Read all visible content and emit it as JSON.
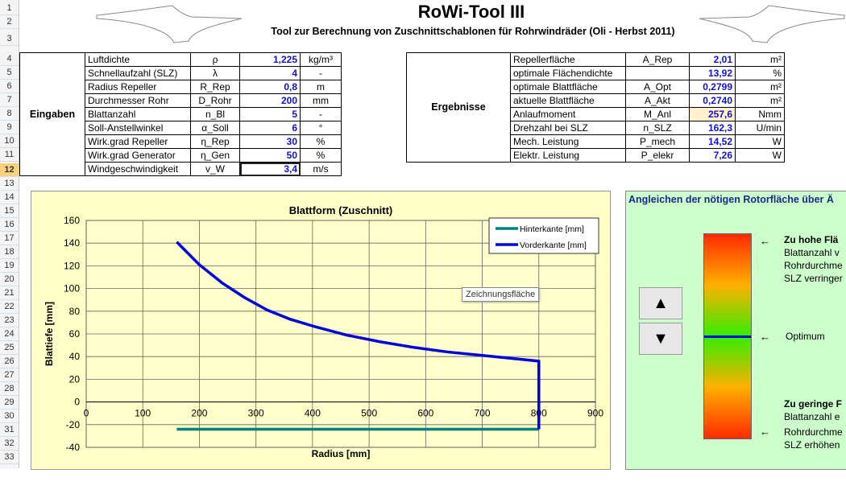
{
  "row_numbers": [
    "1",
    "2",
    "3",
    "4",
    "5",
    "6",
    "7",
    "8",
    "9",
    "10",
    "11",
    "12",
    "13",
    "14",
    "15",
    "16",
    "17",
    "18",
    "19",
    "20",
    "21",
    "22",
    "23",
    "24",
    "25",
    "26",
    "27",
    "28",
    "29",
    "30",
    "31",
    "32",
    "33"
  ],
  "selected_row": "12",
  "header": {
    "title": "RoWi-Tool III",
    "subtitle": "Tool zur Berechnung von Zuschnittschablonen für Rohrwindräder (Oli - Herbst 2011)"
  },
  "inputs": {
    "label": "Eingaben",
    "rows": [
      {
        "name": "Luftdichte",
        "sym": "ρ",
        "val": "1,225",
        "unit": "kg/m³"
      },
      {
        "name": "Schnellaufzahl (SLZ)",
        "sym": "λ",
        "val": "4",
        "unit": "-"
      },
      {
        "name": "Radius Repeller",
        "sym": "R_Rep",
        "val": "0,8",
        "unit": "m"
      },
      {
        "name": "Durchmesser Rohr",
        "sym": "D_Rohr",
        "val": "200",
        "unit": "mm"
      },
      {
        "name": "Blattanzahl",
        "sym": "n_Bl",
        "val": "5",
        "unit": "-"
      },
      {
        "name": "Soll-Anstellwinkel",
        "sym": "α_Soll",
        "val": "6",
        "unit": "°"
      },
      {
        "name": "Wirk.grad Repeller",
        "sym": "η_Rep",
        "val": "30",
        "unit": "%"
      },
      {
        "name": "Wirk.grad Generator",
        "sym": "η_Gen",
        "val": "50",
        "unit": "%"
      },
      {
        "name": "Windgeschwindigkeit",
        "sym": "v_W",
        "val": "3,4",
        "unit": "m/s"
      }
    ]
  },
  "results": {
    "label": "Ergebnisse",
    "rows": [
      {
        "name": "Repellerfläche",
        "sym": "A_Rep",
        "val": "2,01",
        "unit": "m²"
      },
      {
        "name": "optimale Flächendichte",
        "sym": "",
        "val": "13,92",
        "unit": "%"
      },
      {
        "name": "optimale Blattfläche",
        "sym": "A_Opt",
        "val": "0,2799",
        "unit": "m²"
      },
      {
        "name": "aktuelle Blattfläche",
        "sym": "A_Akt",
        "val": "0,2740",
        "unit": "m²"
      },
      {
        "name": "Anlaufmoment",
        "sym": "M_Anl",
        "val": "257,6",
        "unit": "Nmm"
      },
      {
        "name": "Drehzahl bei SLZ",
        "sym": "n_SLZ",
        "val": "162,3",
        "unit": "U/min"
      },
      {
        "name": "Mech. Leistung",
        "sym": "P_mech",
        "val": "14,52",
        "unit": "W"
      },
      {
        "name": "Elektr. Leistung",
        "sym": "P_elekr",
        "val": "7,26",
        "unit": "W"
      }
    ]
  },
  "chart_data": {
    "type": "line",
    "title": "Blattform  (Zuschnitt)",
    "xlabel": "Radius [mm]",
    "ylabel": "Blattiefe [mm]",
    "xlim": [
      0,
      900
    ],
    "ylim": [
      -40,
      160
    ],
    "xticks": [
      "0",
      "100",
      "200",
      "300",
      "400",
      "500",
      "600",
      "700",
      "800",
      "900"
    ],
    "yticks": [
      "160",
      "140",
      "120",
      "100",
      "80",
      "60",
      "40",
      "20",
      "0",
      "-20",
      "-40"
    ],
    "legend_position": "top-right",
    "series": [
      {
        "name": "Hinterkante [mm]",
        "color": "#008080",
        "x": [
          160,
          800
        ],
        "y": [
          -24,
          -24
        ]
      },
      {
        "name": "Vorderkante [mm]",
        "color": "#0000dd",
        "x": [
          160,
          200,
          240,
          280,
          320,
          360,
          400,
          460,
          520,
          580,
          640,
          700,
          760,
          800,
          800
        ],
        "y": [
          141,
          121,
          105,
          92,
          81,
          73,
          67,
          59,
          53,
          48,
          44,
          41,
          38,
          36,
          -24
        ]
      }
    ],
    "tooltip": "Zeichnungsfläche"
  },
  "side_panel": {
    "heading": "Angleichen der nötigen Rotorfläche über Ä",
    "up_label": "▲",
    "down_label": "▼",
    "optimum_label": "Optimum",
    "high": {
      "title": "Zu hohe Flä",
      "lines": [
        "Blattanzahl v",
        "Rohrdurchme",
        "SLZ verringer"
      ]
    },
    "low": {
      "title": "Zu geringe F",
      "lines": [
        "Blattanzahl e",
        "Rohrdurchme",
        "SLZ erhöhen"
      ]
    },
    "gauge_level": 0.5
  }
}
